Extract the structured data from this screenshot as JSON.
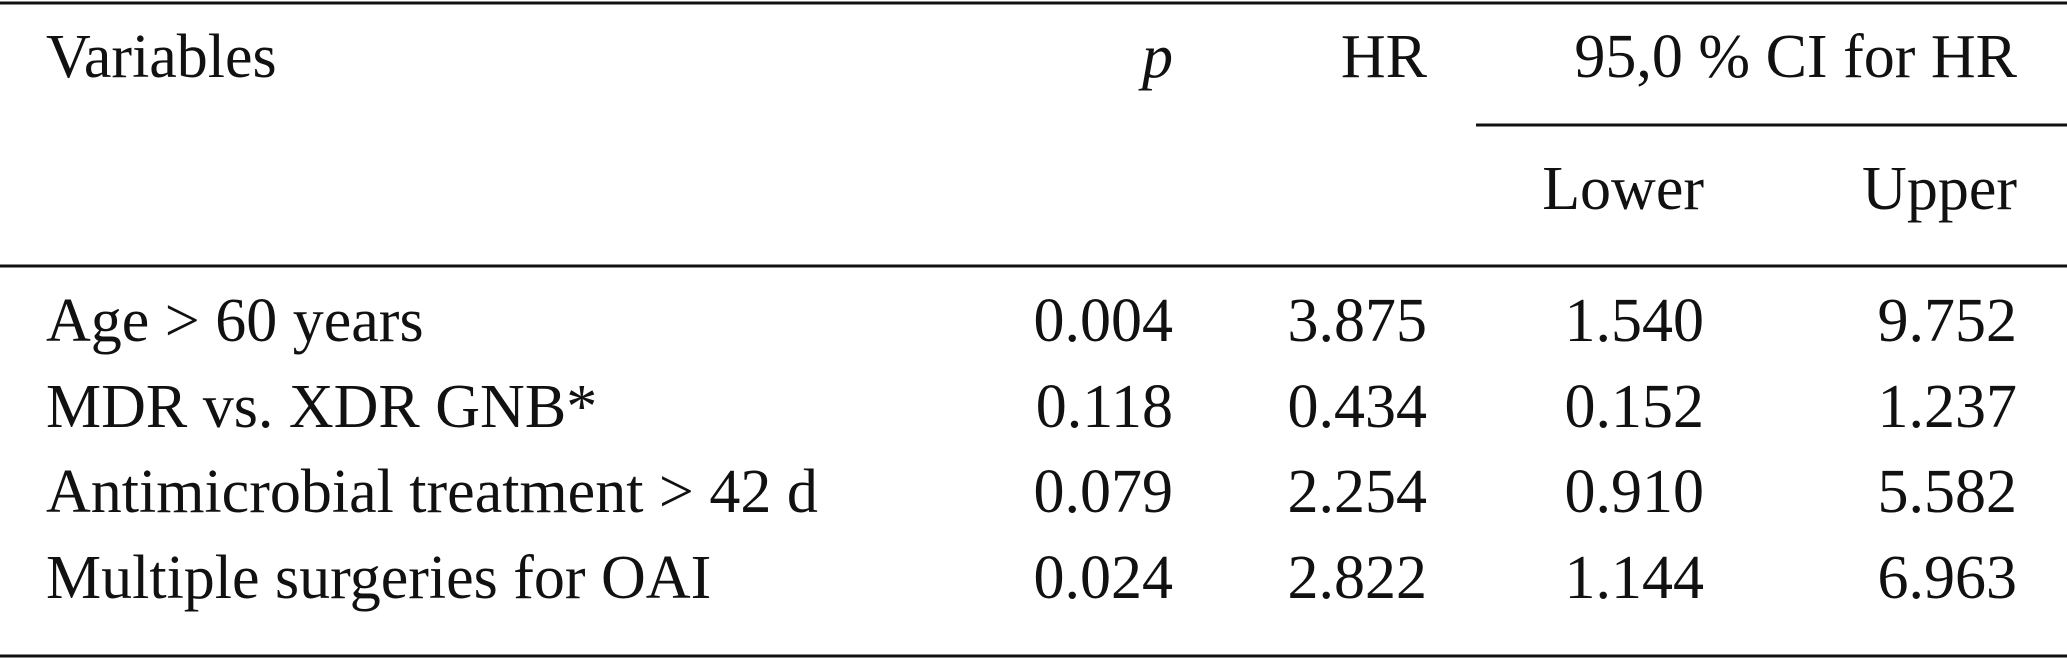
{
  "table": {
    "header": [
      "Variables",
      "p",
      "HR",
      "95,0 % CI for HR"
    ],
    "subheader": [
      "Lower",
      "Upper"
    ],
    "rows": [
      [
        "Age > 60 years",
        "0.004",
        "3.875",
        "1.540",
        "9.752"
      ],
      [
        "MDR vs. XDR GNB*",
        "0.118",
        "0.434",
        "0.152",
        "1.237"
      ],
      [
        "Antimicrobial treatment > 42 d",
        "0.079",
        "2.254",
        "0.910",
        "5.582"
      ],
      [
        "Multiple surgeries for OAI",
        "0.024",
        "2.822",
        "1.144",
        "6.963"
      ]
    ]
  }
}
